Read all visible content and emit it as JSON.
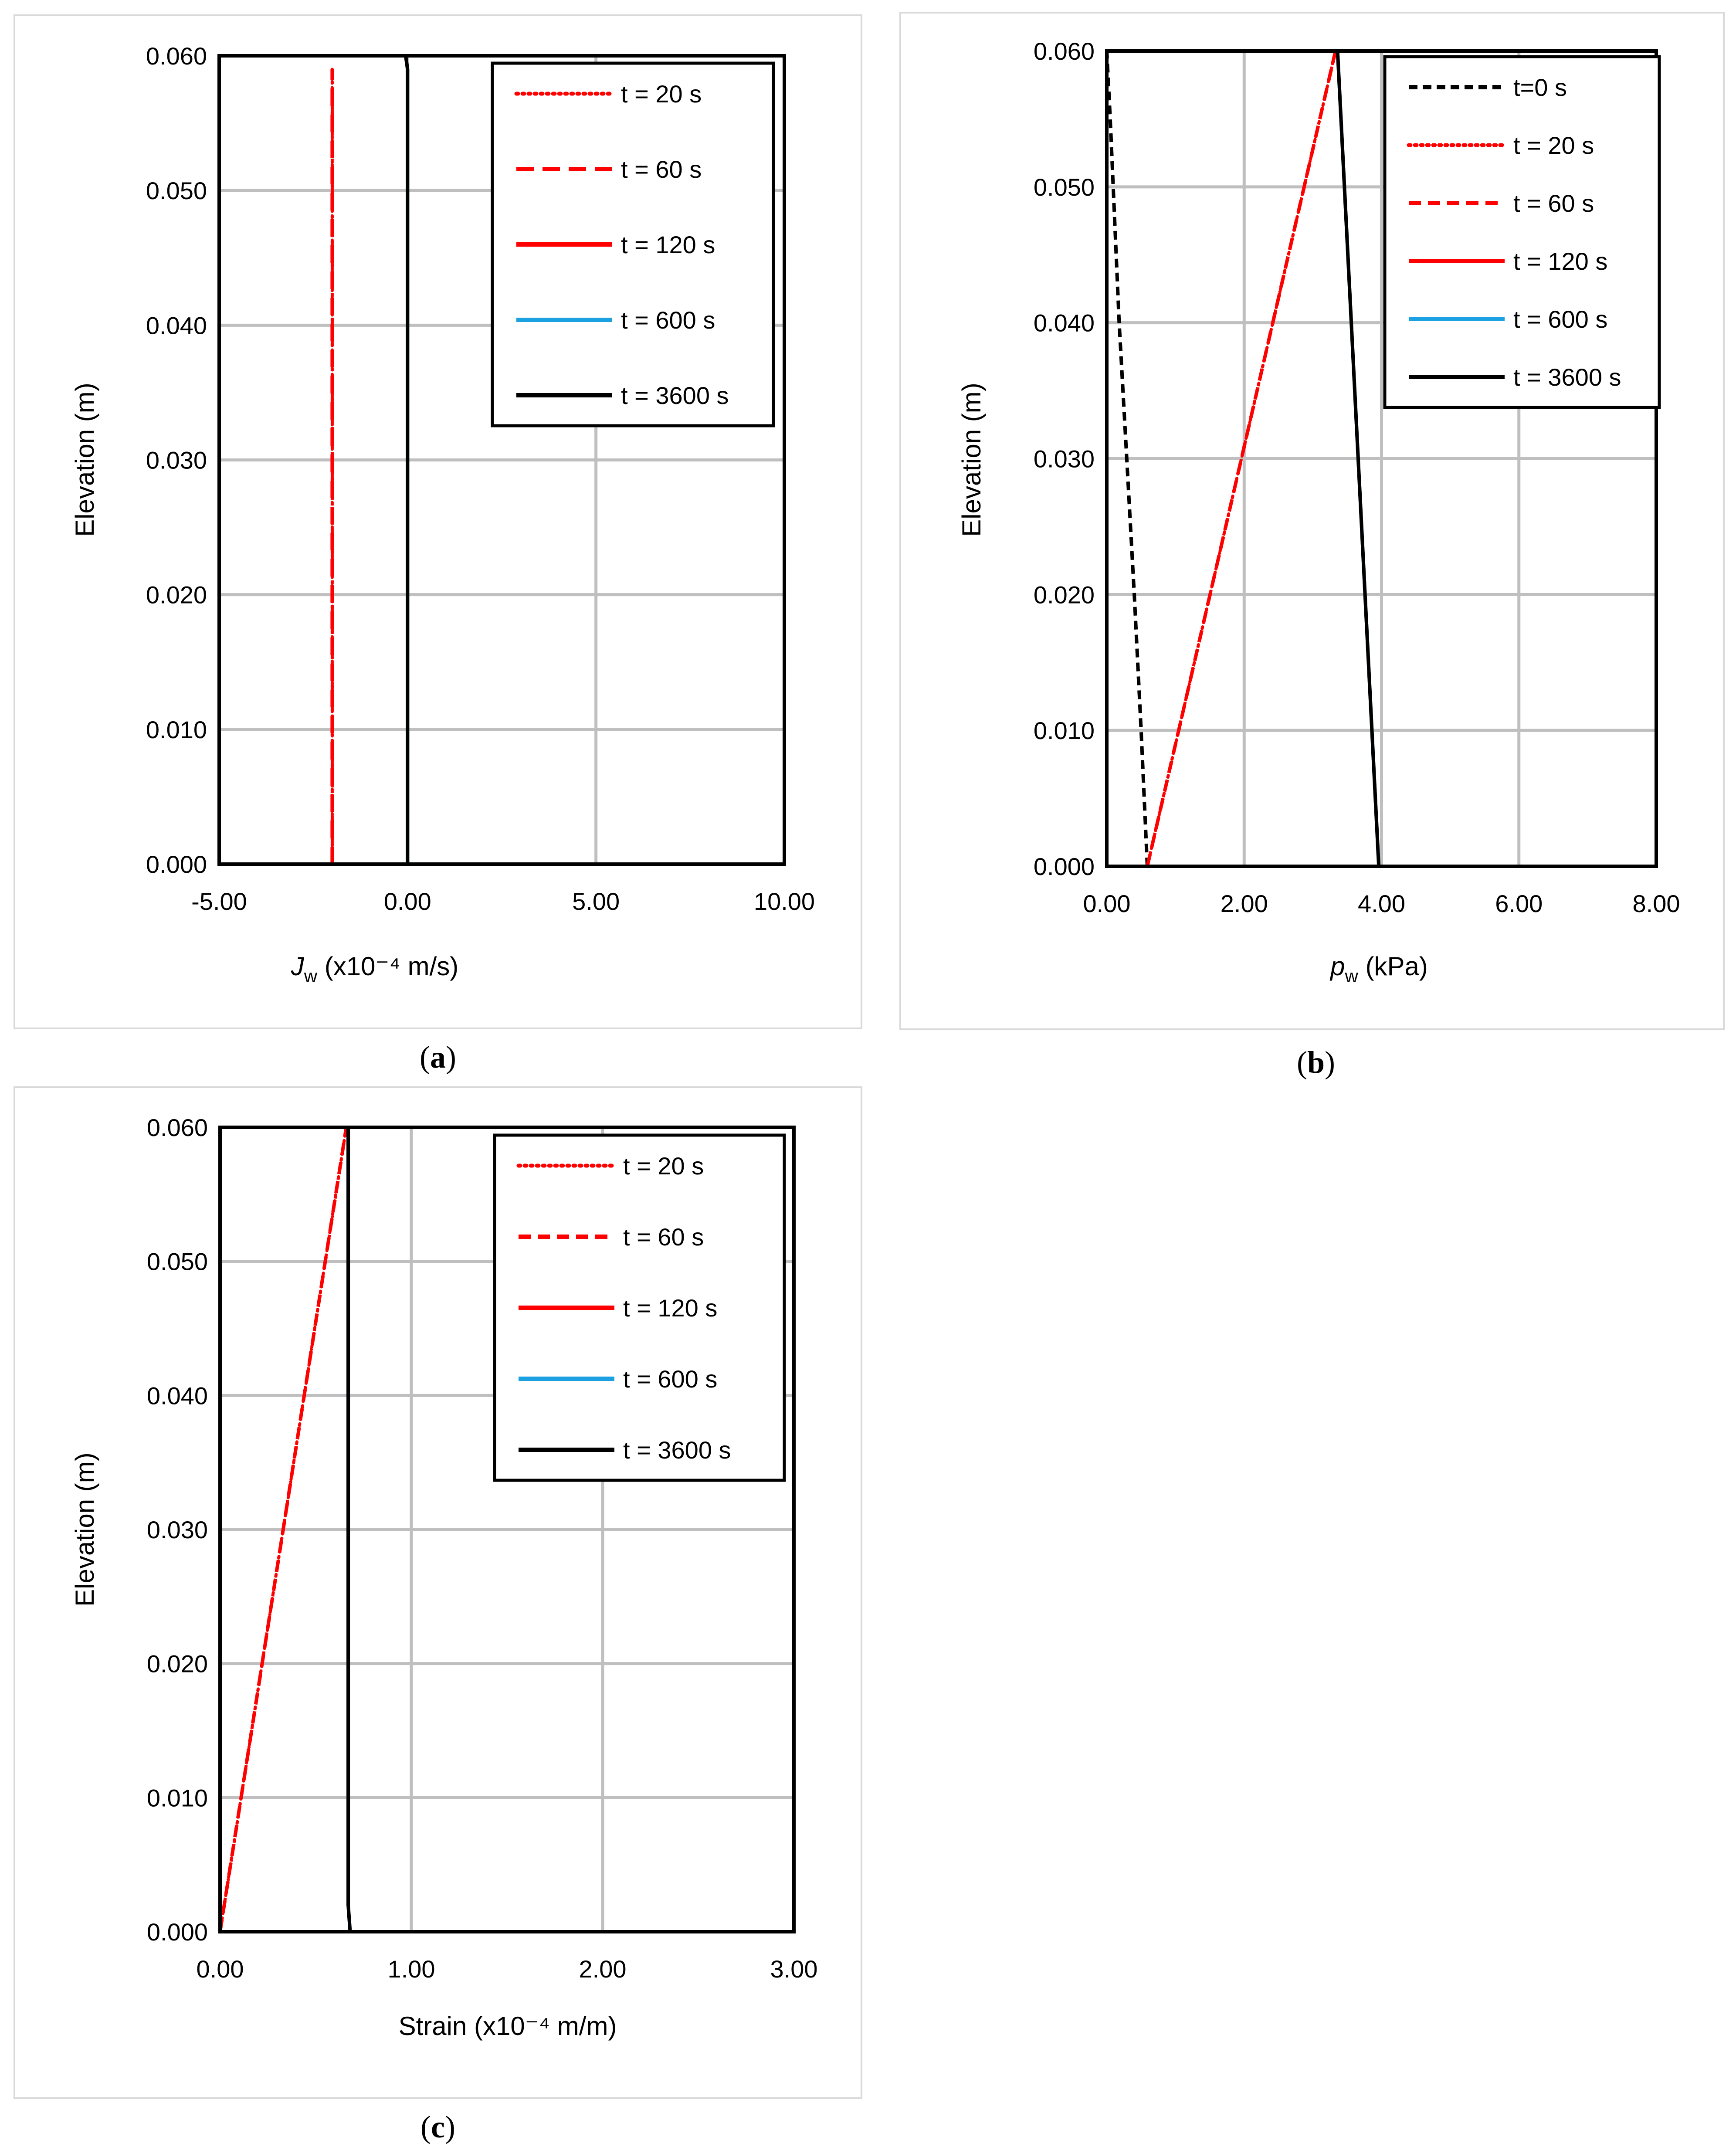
{
  "chart_data": [
    {
      "type": "line",
      "caption": "a",
      "xlabel_main": "J",
      "xlabel_sub": "w",
      "xlabel_rest": " (x10⁻⁴ m/s)",
      "ylabel": "Elevation (m)",
      "xlim": [
        -5,
        10
      ],
      "ylim": [
        0,
        0.06
      ],
      "xticks": [
        -5,
        0,
        5,
        10
      ],
      "xtick_labels": [
        "-5.00",
        "0.00",
        "5.00",
        "10.00"
      ],
      "yticks": [
        0,
        0.01,
        0.02,
        0.03,
        0.04,
        0.05,
        0.06
      ],
      "ytick_labels": [
        "0.000",
        "0.010",
        "0.020",
        "0.030",
        "0.040",
        "0.050",
        "0.060"
      ],
      "legend_position": "top-right",
      "series": [
        {
          "name": "t = 20 s",
          "color": "#ff0000",
          "style": "dotted",
          "x": [
            -2.0,
            -2.0
          ],
          "y": [
            0,
            0.059
          ]
        },
        {
          "name": "t = 60 s",
          "color": "#ff0000",
          "style": "longdash",
          "x": [
            -2.0,
            -2.0
          ],
          "y": [
            0,
            0.059
          ]
        },
        {
          "name": "t = 120 s",
          "color": "#ff0000",
          "style": "solid-dashdot",
          "x": [
            -2.0,
            -2.0
          ],
          "y": [
            0,
            0.059
          ]
        },
        {
          "name": "t = 600 s",
          "color": "#1ba1e2",
          "style": "solid",
          "x": [
            0.0,
            0.0,
            -0.05
          ],
          "y": [
            0,
            0.059,
            0.06
          ]
        },
        {
          "name": "t = 3600 s",
          "color": "#000000",
          "style": "solid",
          "x": [
            0.0,
            0.0,
            -0.05
          ],
          "y": [
            0,
            0.059,
            0.06
          ]
        }
      ]
    },
    {
      "type": "line",
      "caption": "b",
      "xlabel_main": "p",
      "xlabel_sub": "w",
      "xlabel_rest": " (kPa)",
      "ylabel": "Elevation (m)",
      "xlim": [
        0,
        8
      ],
      "ylim": [
        0,
        0.06
      ],
      "xticks": [
        0,
        2,
        4,
        6,
        8
      ],
      "xtick_labels": [
        "0.00",
        "2.00",
        "4.00",
        "6.00",
        "8.00"
      ],
      "yticks": [
        0,
        0.01,
        0.02,
        0.03,
        0.04,
        0.05,
        0.06
      ],
      "ytick_labels": [
        "0.000",
        "0.010",
        "0.020",
        "0.030",
        "0.040",
        "0.050",
        "0.060"
      ],
      "legend_position": "top-right",
      "series": [
        {
          "name": "t=0 s",
          "color": "#000000",
          "style": "shortdash",
          "x": [
            0.59,
            0.5,
            0.4,
            0.28,
            0.18,
            0.05,
            0.0
          ],
          "y": [
            0,
            0.01,
            0.02,
            0.031,
            0.04,
            0.055,
            0.06
          ]
        },
        {
          "name": "t = 20 s",
          "color": "#ff0000",
          "style": "dotted",
          "x": [
            0.59,
            3.33
          ],
          "y": [
            0,
            0.06
          ]
        },
        {
          "name": "t = 60 s",
          "color": "#ff0000",
          "style": "dashed",
          "x": [
            0.59,
            3.33
          ],
          "y": [
            0,
            0.06
          ]
        },
        {
          "name": "t = 120 s",
          "color": "#ff0000",
          "style": "solid-dashdot",
          "x": [
            0.59,
            3.33
          ],
          "y": [
            0,
            0.06
          ]
        },
        {
          "name": "t = 600 s",
          "color": "#1ba1e2",
          "style": "solid",
          "x": [
            3.96,
            3.36
          ],
          "y": [
            0,
            0.06
          ]
        },
        {
          "name": "t = 3600 s",
          "color": "#000000",
          "style": "solid",
          "x": [
            3.96,
            3.36
          ],
          "y": [
            0,
            0.06
          ]
        }
      ]
    },
    {
      "type": "line",
      "caption": "c",
      "xlabel_main": "Strain (x10⁻⁴ m/m)",
      "xlabel_sub": "",
      "xlabel_rest": "",
      "ylabel": "Elevation (m)",
      "xlim": [
        0,
        3
      ],
      "ylim": [
        0,
        0.06
      ],
      "xticks": [
        0,
        1,
        2,
        3
      ],
      "xtick_labels": [
        "0.00",
        "1.00",
        "2.00",
        "3.00"
      ],
      "yticks": [
        0,
        0.01,
        0.02,
        0.03,
        0.04,
        0.05,
        0.06
      ],
      "ytick_labels": [
        "0.000",
        "0.010",
        "0.020",
        "0.030",
        "0.040",
        "0.050",
        "0.060"
      ],
      "legend_position": "top-right",
      "series": [
        {
          "name": "t = 20 s",
          "color": "#ff0000",
          "style": "dotted",
          "x": [
            0.0,
            0.66
          ],
          "y": [
            0,
            0.06
          ]
        },
        {
          "name": "t = 60 s",
          "color": "#ff0000",
          "style": "dashed",
          "x": [
            0.0,
            0.66
          ],
          "y": [
            0,
            0.06
          ]
        },
        {
          "name": "t = 120 s",
          "color": "#ff0000",
          "style": "solid-dashdot",
          "x": [
            0.0,
            0.66
          ],
          "y": [
            0,
            0.06
          ]
        },
        {
          "name": "t = 600 s",
          "color": "#1ba1e2",
          "style": "solid",
          "x": [
            0.68,
            0.67,
            0.67
          ],
          "y": [
            0,
            0.002,
            0.06
          ]
        },
        {
          "name": "t = 3600 s",
          "color": "#000000",
          "style": "solid",
          "x": [
            0.68,
            0.67,
            0.67
          ],
          "y": [
            0,
            0.002,
            0.06
          ]
        }
      ]
    }
  ]
}
